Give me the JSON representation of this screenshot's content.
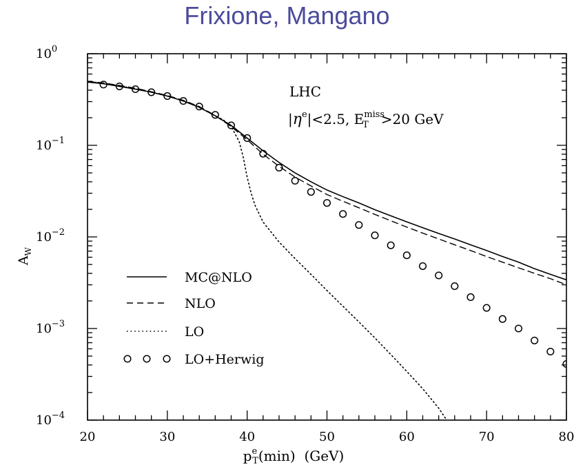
{
  "header": {
    "title": "Frixione, Mangano"
  },
  "chart_data": {
    "type": "line",
    "title": "Frixione, Mangano",
    "xlabel": "p_T^e(min) (GeV)",
    "xlabel_parts": {
      "p": "p",
      "sub": "T",
      "sup": "e",
      "rest": "(min)  (GeV)"
    },
    "ylabel": "A_W",
    "ylabel_parts": {
      "main": "A",
      "sub": "W"
    },
    "xlim": [
      20,
      80
    ],
    "ylim": [
      0.0001,
      1
    ],
    "yscale": "log",
    "x_ticks": [
      "20",
      "30",
      "40",
      "50",
      "60",
      "70",
      "80"
    ],
    "y_ticks": [
      {
        "base": "10",
        "exp": "0"
      },
      {
        "base": "10",
        "exp": "−1"
      },
      {
        "base": "10",
        "exp": "−2"
      },
      {
        "base": "10",
        "exp": "−3"
      },
      {
        "base": "10",
        "exp": "−4"
      }
    ],
    "annotation": {
      "line1": "LHC",
      "line2_a": "|",
      "line2_eta": "η",
      "line2_sup": "e",
      "line2_b": "|<2.5, E",
      "line2_sub": "T",
      "line2_sup2": "miss",
      "line2_c": ">20 GeV"
    },
    "legend_position": "bottom-left",
    "series": [
      {
        "name": "MC@NLO",
        "style": "solid",
        "x": [
          20,
          22,
          24,
          26,
          28,
          30,
          32,
          34,
          36,
          38,
          40,
          42,
          44,
          46,
          48,
          50,
          52,
          54,
          56,
          58,
          60,
          62,
          64,
          66,
          68,
          70,
          72,
          74,
          76,
          78,
          80
        ],
        "y": [
          0.49,
          0.47,
          0.44,
          0.41,
          0.38,
          0.345,
          0.305,
          0.26,
          0.21,
          0.165,
          0.12,
          0.087,
          0.065,
          0.05,
          0.04,
          0.0325,
          0.0275,
          0.0235,
          0.0198,
          0.017,
          0.0146,
          0.0126,
          0.0109,
          0.0095,
          0.0082,
          0.0071,
          0.0061,
          0.0053,
          0.0045,
          0.0039,
          0.0034
        ]
      },
      {
        "name": "NLO",
        "style": "dashed",
        "x": [
          20,
          22,
          24,
          26,
          28,
          30,
          32,
          34,
          36,
          38,
          40,
          42,
          44,
          46,
          48,
          50,
          52,
          54,
          56,
          58,
          60,
          62,
          64,
          66,
          68,
          70,
          72,
          74,
          76,
          78,
          80
        ],
        "y": [
          0.5,
          0.48,
          0.45,
          0.42,
          0.385,
          0.35,
          0.31,
          0.265,
          0.212,
          0.16,
          0.115,
          0.08,
          0.059,
          0.045,
          0.036,
          0.029,
          0.0245,
          0.0208,
          0.0176,
          0.015,
          0.0128,
          0.011,
          0.0095,
          0.0082,
          0.0071,
          0.0061,
          0.0053,
          0.0046,
          0.004,
          0.0035,
          0.003
        ]
      },
      {
        "name": "LO",
        "style": "dotted",
        "x": [
          20,
          22,
          24,
          26,
          28,
          30,
          32,
          34,
          36,
          37,
          38,
          39,
          39.5,
          40,
          40.5,
          41,
          42,
          44,
          46,
          48,
          50,
          52,
          54,
          56,
          58,
          60,
          62,
          64,
          65
        ],
        "y": [
          0.5,
          0.475,
          0.445,
          0.415,
          0.38,
          0.345,
          0.305,
          0.26,
          0.21,
          0.19,
          0.16,
          0.11,
          0.075,
          0.045,
          0.03,
          0.022,
          0.0145,
          0.0088,
          0.0058,
          0.0039,
          0.0026,
          0.00175,
          0.00118,
          0.00079,
          0.00052,
          0.00034,
          0.00022,
          0.000135,
          0.0001
        ]
      },
      {
        "name": "LO+Herwig",
        "style": "circles",
        "x": [
          22,
          24,
          26,
          28,
          30,
          32,
          34,
          36,
          38,
          40,
          42,
          44,
          46,
          48,
          50,
          52,
          54,
          56,
          58,
          60,
          62,
          64,
          66,
          68,
          70,
          72,
          74,
          76,
          78,
          80
        ],
        "y": [
          0.46,
          0.44,
          0.41,
          0.38,
          0.345,
          0.305,
          0.265,
          0.215,
          0.165,
          0.12,
          0.081,
          0.057,
          0.041,
          0.031,
          0.0235,
          0.0178,
          0.0135,
          0.0104,
          0.0081,
          0.0063,
          0.0048,
          0.0038,
          0.0029,
          0.0022,
          0.00168,
          0.00127,
          0.001,
          0.00074,
          0.00056,
          0.00041
        ]
      }
    ]
  }
}
